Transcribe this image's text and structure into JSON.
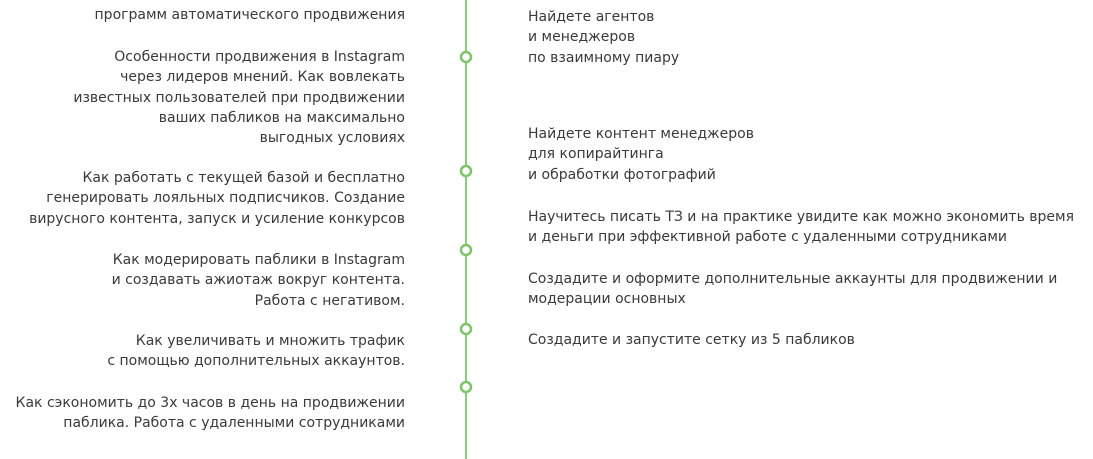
{
  "left_items": [
    [
      "программ автоматического продвижения"
    ],
    [
      "Особенности продвижения в Instagram",
      "через лидеров мнений. Как вовлекать",
      "известных пользователей при продвижении",
      "ваших пабликов на максимально",
      "выгодных условиях"
    ],
    [
      "Как работать с текущей базой и бесплатно",
      "генерировать лояльных подписчиков. Создание",
      "вирусного контента, запуск и усиление конкурсов"
    ],
    [
      "Как модерировать паблики в Instagram",
      "и создавать ажиотаж вокруг контента.",
      "Работа с негативом."
    ],
    [
      "Как увеличивать и множить трафик",
      "с помощью дополнительных аккаунтов."
    ],
    [
      "Как сэкономить до 3х часов в день на продвижении",
      "паблика. Работа с удаленными сотрудниками"
    ]
  ],
  "right_items": [
    [
      "Найдете агентов",
      "и менеджеров",
      "по взаимному пиару"
    ],
    [
      "Найдете контент менеджеров",
      "для копирайтинга",
      "и обработки фотографий"
    ],
    [
      "Научитесь писать ТЗ и на практике увидите как можно экономить время",
      "и деньги при эффективной работе с удаленными сотрудниками"
    ],
    [
      "Создадите и оформите дополнительные аккаунты для продвижении и",
      "модерации основных"
    ],
    [
      "Создадите и запустите сетку из 5 пабликов"
    ]
  ]
}
